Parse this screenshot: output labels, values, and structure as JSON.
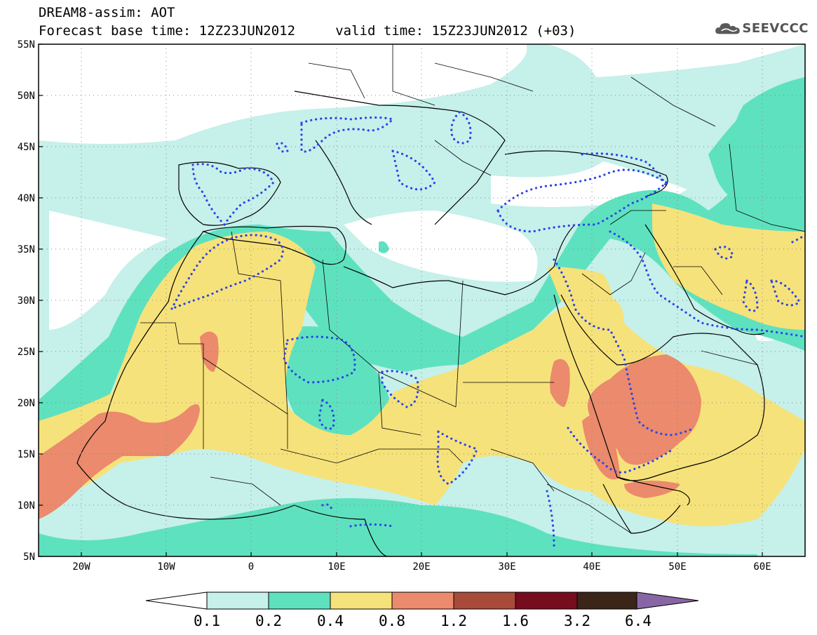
{
  "title": {
    "line1": "DREAM8-assim: AOT",
    "line2": "Forecast base time: 12Z23JUN2012     valid time: 15Z23JUN2012 (+03)"
  },
  "logo": {
    "text": "SEEVCCC",
    "icon": "cloud-logo-icon"
  },
  "map": {
    "lat_labels": [
      "55N",
      "50N",
      "45N",
      "40N",
      "35N",
      "30N",
      "25N",
      "20N",
      "15N",
      "10N",
      "5N"
    ],
    "lon_labels": [
      "20W",
      "10W",
      "0",
      "10E",
      "20E",
      "30E",
      "40E",
      "50E",
      "60E"
    ],
    "extent": {
      "lon_min": -25,
      "lon_max": 65,
      "lat_min": 5,
      "lat_max": 55
    },
    "gridlines": "dotted"
  },
  "colorbar": {
    "levels": [
      "0.1",
      "0.2",
      "0.4",
      "0.8",
      "1.2",
      "1.6",
      "3.2",
      "6.4"
    ],
    "colors": [
      "#ffffff",
      "#c6f0ea",
      "#5ee1bf",
      "#f6e27a",
      "#eb8a6c",
      "#a84b3b",
      "#770c1e",
      "#3b2418",
      "#8866a6"
    ]
  }
}
